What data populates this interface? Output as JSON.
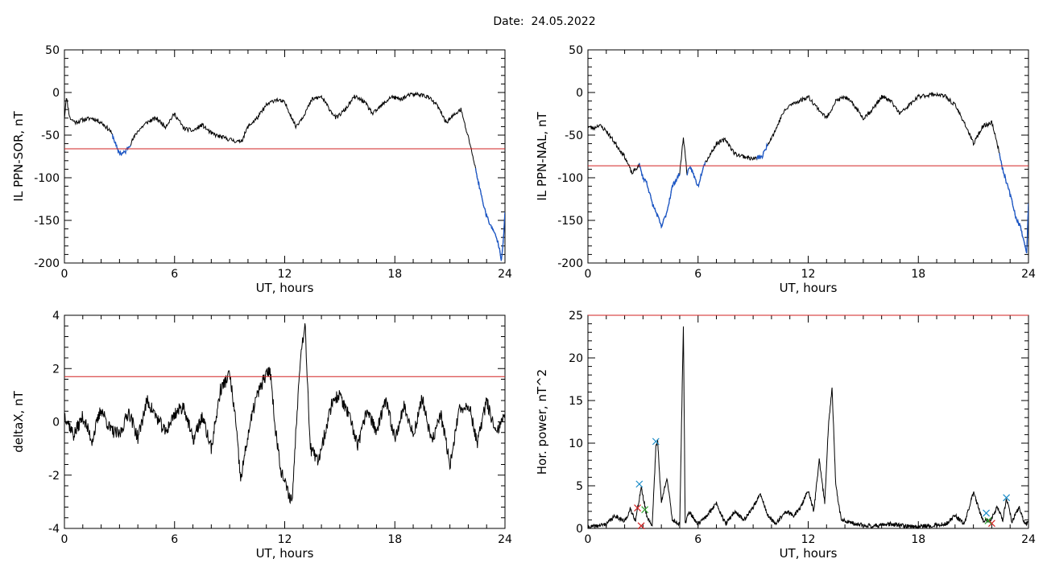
{
  "header": {
    "title": "Date:  24.05.2022"
  },
  "colors": {
    "axis": "#000000",
    "series": "#000000",
    "substorm_segment": "#1a56c8",
    "threshold": "#d22020",
    "marker_blue": "#1a8cc8",
    "marker_green": "#2ea02e",
    "marker_red": "#d22020"
  },
  "chart_data": [
    {
      "id": "ppn-sor",
      "type": "line",
      "xlabel": "UT, hours",
      "ylabel": "IL PPN-SOR, nT",
      "xlim": [
        0,
        24
      ],
      "ylim": [
        -200,
        50
      ],
      "xticks": [
        0,
        6,
        12,
        18,
        24
      ],
      "yticks": [
        50,
        0,
        -50,
        -100,
        -150,
        -200
      ],
      "threshold": -66,
      "x": [
        0,
        0.1,
        0.3,
        0.6,
        1.0,
        1.5,
        2.0,
        2.5,
        2.7,
        2.9,
        3.1,
        3.3,
        3.6,
        4.0,
        4.5,
        5.0,
        5.5,
        6.0,
        6.5,
        7.0,
        7.5,
        8.0,
        8.5,
        9.0,
        9.5,
        9.7,
        10.0,
        10.5,
        11.0,
        11.5,
        12.0,
        12.3,
        12.6,
        13.0,
        13.5,
        14.0,
        14.3,
        14.8,
        15.3,
        15.8,
        16.3,
        16.8,
        17.3,
        17.8,
        18.3,
        18.8,
        19.3,
        19.8,
        20.3,
        20.8,
        21.3,
        21.6,
        21.9,
        22.1,
        22.4,
        22.7,
        23.0,
        23.3,
        23.5,
        23.7,
        23.8,
        23.9,
        24.0
      ],
      "y": [
        -30,
        -5,
        -30,
        -35,
        -32,
        -30,
        -35,
        -45,
        -55,
        -68,
        -72,
        -70,
        -60,
        -45,
        -35,
        -30,
        -40,
        -25,
        -42,
        -45,
        -38,
        -48,
        -52,
        -55,
        -58,
        -55,
        -40,
        -30,
        -15,
        -8,
        -12,
        -25,
        -40,
        -28,
        -8,
        -5,
        -15,
        -30,
        -20,
        -5,
        -10,
        -25,
        -15,
        -5,
        -8,
        -3,
        -2,
        -5,
        -15,
        -35,
        -25,
        -20,
        -45,
        -60,
        -90,
        -120,
        -145,
        -160,
        -168,
        -182,
        -196,
        -175,
        -140
      ],
      "blue_ranges": [
        [
          2.6,
          3.6
        ],
        [
          22.4,
          24.0
        ]
      ]
    },
    {
      "id": "ppn-nal",
      "type": "line",
      "xlabel": "UT, hours",
      "ylabel": "IL PPN-NAL, nT",
      "xlim": [
        0,
        24
      ],
      "ylim": [
        -200,
        50
      ],
      "xticks": [
        0,
        6,
        12,
        18,
        24
      ],
      "yticks": [
        50,
        0,
        -50,
        -100,
        -150,
        -200
      ],
      "threshold": -86,
      "x": [
        0,
        0.3,
        0.6,
        1.0,
        1.5,
        2.0,
        2.4,
        2.8,
        3.0,
        3.2,
        3.5,
        3.8,
        4.0,
        4.3,
        4.6,
        5.0,
        5.2,
        5.4,
        5.6,
        6.0,
        6.3,
        6.6,
        7.0,
        7.5,
        8.0,
        8.5,
        9.0,
        9.5,
        9.8,
        10.2,
        10.6,
        11.0,
        11.5,
        12.0,
        12.5,
        13.0,
        13.5,
        14.0,
        14.5,
        15.0,
        15.5,
        16.0,
        16.5,
        17.0,
        17.5,
        18.0,
        18.5,
        19.0,
        19.5,
        20.0,
        20.5,
        21.0,
        21.5,
        22.0,
        22.3,
        22.6,
        23.0,
        23.3,
        23.6,
        23.9,
        24.0
      ],
      "y": [
        -40,
        -42,
        -38,
        -45,
        -60,
        -75,
        -95,
        -85,
        -100,
        -105,
        -130,
        -145,
        -158,
        -140,
        -110,
        -95,
        -52,
        -95,
        -88,
        -110,
        -85,
        -75,
        -60,
        -55,
        -72,
        -75,
        -78,
        -75,
        -60,
        -45,
        -25,
        -15,
        -10,
        -5,
        -18,
        -30,
        -10,
        -5,
        -15,
        -30,
        -20,
        -5,
        -10,
        -25,
        -15,
        -5,
        -3,
        -2,
        -5,
        -15,
        -35,
        -60,
        -40,
        -35,
        -60,
        -90,
        -120,
        -145,
        -160,
        -190,
        -130
      ],
      "blue_ranges": [
        [
          2.8,
          5.0
        ],
        [
          5.4,
          6.4
        ],
        [
          9.2,
          9.8
        ],
        [
          22.4,
          24.0
        ]
      ]
    },
    {
      "id": "deltax",
      "type": "line",
      "xlabel": "UT, hours",
      "ylabel": "deltaX, nT",
      "xlim": [
        0,
        24
      ],
      "ylim": [
        -4,
        4
      ],
      "xticks": [
        0,
        6,
        12,
        18,
        24
      ],
      "yticks": [
        4,
        2,
        0,
        -2,
        -4
      ],
      "threshold": 1.7,
      "x": [
        0,
        0.5,
        1.0,
        1.5,
        2.0,
        2.5,
        3.0,
        3.5,
        4.0,
        4.5,
        5.0,
        5.5,
        6.0,
        6.5,
        7.0,
        7.5,
        8.0,
        8.5,
        9.0,
        9.3,
        9.6,
        10.0,
        10.4,
        10.8,
        11.2,
        11.5,
        11.8,
        12.1,
        12.4,
        12.8,
        13.1,
        13.4,
        13.8,
        14.2,
        14.6,
        15.0,
        15.5,
        16.0,
        16.5,
        17.0,
        17.5,
        18.0,
        18.5,
        19.0,
        19.5,
        20.0,
        20.5,
        21.0,
        21.5,
        22.0,
        22.5,
        23.0,
        23.5,
        24.0
      ],
      "y": [
        0.3,
        -0.5,
        0.2,
        -0.7,
        0.5,
        -0.3,
        -0.5,
        0.4,
        -0.6,
        0.8,
        0.2,
        -0.4,
        0.3,
        0.6,
        -0.7,
        0.2,
        -1.0,
        1.2,
        1.8,
        0.2,
        -2.2,
        -0.5,
        0.8,
        1.5,
        2.0,
        -0.3,
        -1.8,
        -2.5,
        -3.0,
        2.0,
        3.8,
        -1.0,
        -1.5,
        -0.4,
        0.8,
        1.0,
        0.2,
        -0.9,
        0.5,
        -0.4,
        0.8,
        -0.6,
        0.6,
        -0.5,
        0.9,
        -0.8,
        0.3,
        -1.6,
        0.4,
        0.7,
        -0.8,
        0.8,
        -0.5,
        0.3
      ]
    },
    {
      "id": "hor-power",
      "type": "line",
      "xlabel": "UT, hours",
      "ylabel": "Hor. power, nT^2",
      "xlim": [
        0,
        24
      ],
      "ylim": [
        0,
        25
      ],
      "xticks": [
        0,
        6,
        12,
        18,
        24
      ],
      "yticks": [
        25,
        20,
        15,
        10,
        5,
        0
      ],
      "threshold": 25,
      "x": [
        0,
        1.0,
        1.5,
        2.0,
        2.3,
        2.6,
        2.9,
        3.2,
        3.5,
        3.7,
        3.8,
        4.0,
        4.3,
        4.6,
        5.0,
        5.2,
        5.3,
        5.5,
        6.0,
        6.5,
        7.0,
        7.5,
        8.0,
        8.5,
        9.0,
        9.4,
        9.8,
        10.2,
        10.8,
        11.2,
        11.6,
        12.0,
        12.3,
        12.6,
        12.9,
        13.1,
        13.3,
        13.5,
        13.8,
        14.5,
        15.5,
        16.5,
        17.5,
        18.5,
        19.5,
        20.0,
        20.5,
        21.0,
        21.5,
        21.9,
        22.3,
        22.6,
        22.8,
        23.1,
        23.5,
        23.8,
        24.0
      ],
      "y": [
        0.1,
        0.5,
        1.5,
        0.8,
        2.2,
        1.0,
        4.8,
        1.5,
        0.3,
        9.5,
        10.2,
        3.0,
        6.0,
        1.0,
        0.5,
        23.8,
        0.5,
        2.0,
        0.5,
        1.5,
        3.0,
        0.5,
        2.0,
        1.0,
        2.5,
        4.0,
        1.5,
        0.5,
        2.0,
        1.5,
        2.5,
        4.5,
        2.0,
        8.0,
        3.0,
        12.0,
        16.5,
        5.0,
        1.0,
        0.5,
        0.3,
        0.5,
        0.2,
        0.3,
        0.5,
        1.5,
        0.5,
        4.2,
        1.0,
        0.8,
        2.5,
        1.0,
        3.5,
        0.8,
        2.5,
        0.5,
        0.8
      ],
      "markers": [
        {
          "x": 2.8,
          "y": 5.2,
          "color": "blue"
        },
        {
          "x": 3.7,
          "y": 10.2,
          "color": "blue"
        },
        {
          "x": 21.7,
          "y": 1.8,
          "color": "blue"
        },
        {
          "x": 22.8,
          "y": 3.6,
          "color": "blue"
        },
        {
          "x": 2.7,
          "y": 2.4,
          "color": "red"
        },
        {
          "x": 2.9,
          "y": 0.3,
          "color": "red"
        },
        {
          "x": 22.0,
          "y": 0.6,
          "color": "red"
        },
        {
          "x": 3.1,
          "y": 2.2,
          "color": "green"
        },
        {
          "x": 21.8,
          "y": 0.9,
          "color": "green"
        }
      ]
    }
  ]
}
